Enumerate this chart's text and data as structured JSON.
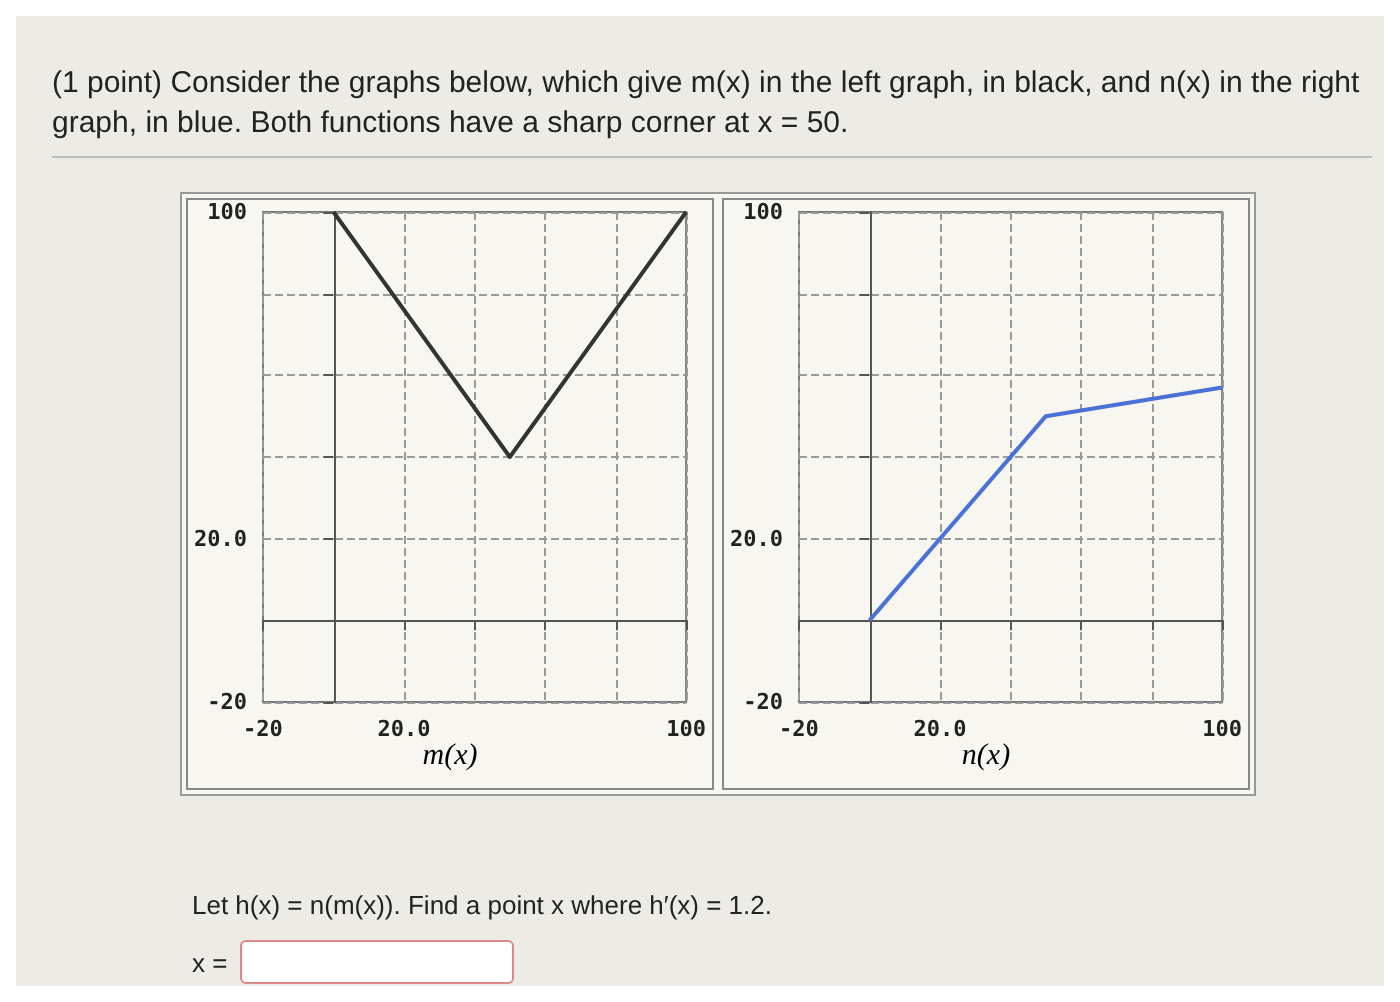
{
  "chart_data": [
    {
      "type": "line",
      "title": "(1 point) Consider the graphs below, which give m(x) in the left graph, in black, and n(x) in the right graph, in blue. Both functions have a sharp corner at x = 50.",
      "xlabel": "m(x)",
      "x": [
        0,
        50,
        100
      ],
      "series": [
        {
          "color": "#333333",
          "values": [
            100,
            40,
            100
          ]
        }
      ],
      "xlim": [
        -20,
        100
      ],
      "ylim": [
        -20,
        100
      ],
      "xticks": [
        {
          "value": -20,
          "label": "-20"
        },
        {
          "value": 0,
          "label": null
        },
        {
          "value": 20,
          "label": "20.0"
        },
        {
          "value": 40,
          "label": null
        },
        {
          "value": 60,
          "label": null
        },
        {
          "value": 80,
          "label": null
        },
        {
          "value": 100,
          "label": "100"
        }
      ],
      "yticks": [
        {
          "value": -20,
          "label": "-20"
        },
        {
          "value": 0,
          "label": null
        },
        {
          "value": 20,
          "label": "20.0"
        },
        {
          "value": 40,
          "label": null
        },
        {
          "value": 60,
          "label": null
        },
        {
          "value": 80,
          "label": null
        },
        {
          "value": 100,
          "label": "100"
        }
      ],
      "grid": true,
      "marker": "none"
    },
    {
      "type": "line",
      "xlabel": "n(x)",
      "x": [
        0,
        50,
        100
      ],
      "series": [
        {
          "color": "#4a72d6",
          "values": [
            0,
            50,
            57
          ]
        }
      ],
      "xlim": [
        -20,
        100
      ],
      "ylim": [
        -20,
        100
      ],
      "xticks": [
        {
          "value": -20,
          "label": "-20"
        },
        {
          "value": 0,
          "label": null
        },
        {
          "value": 20,
          "label": "20.0"
        },
        {
          "value": 40,
          "label": null
        },
        {
          "value": 60,
          "label": null
        },
        {
          "value": 80,
          "label": null
        },
        {
          "value": 100,
          "label": "100"
        }
      ],
      "yticks": [
        {
          "value": -20,
          "label": "-20"
        },
        {
          "value": 0,
          "label": null
        },
        {
          "value": 20,
          "label": "20.0"
        },
        {
          "value": 40,
          "label": null
        },
        {
          "value": 60,
          "label": null
        },
        {
          "value": 80,
          "label": null
        },
        {
          "value": 100,
          "label": "100"
        }
      ],
      "grid": true,
      "marker": "none",
      "annotations": [
        "Let h(x) = n(m(x)). Find a point x where h′(x) = 1.2.",
        "x ="
      ]
    }
  ]
}
